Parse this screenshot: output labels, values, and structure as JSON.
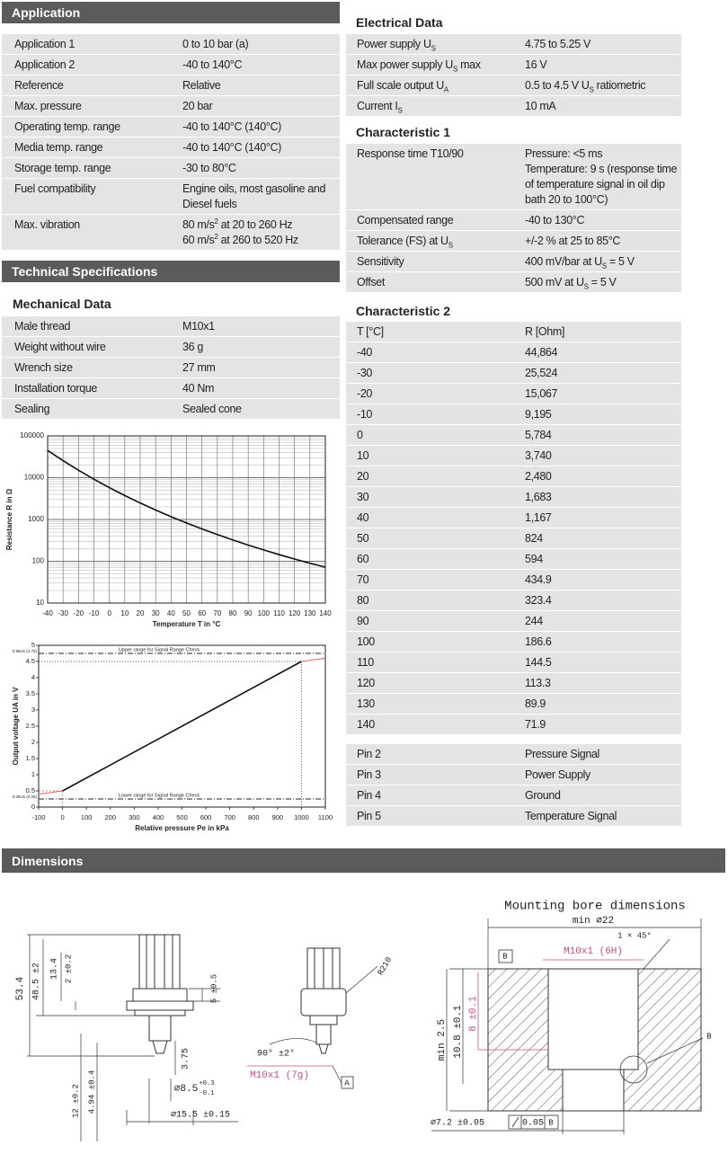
{
  "application": {
    "title": "Application",
    "rows": [
      [
        "Application 1",
        "0 to 10 bar (a)"
      ],
      [
        "Application 2",
        "-40 to 140°C"
      ],
      [
        "Reference",
        "Relative"
      ],
      [
        "Max. pressure",
        "20 bar"
      ],
      [
        "Operating temp. range",
        "-40 to 140°C (140°C)"
      ],
      [
        "Media temp. range",
        "-40 to 140°C (140°C)"
      ],
      [
        "Storage temp. range",
        "-30 to 80°C"
      ],
      [
        "Fuel compatibility",
        "Engine oils, most gasoline and Diesel fuels"
      ],
      [
        "Max. vibration",
        [
          [
            "80 m/s",
            {
              "sup": "2"
            },
            " at 20 to 260 Hz"
          ],
          [
            "60 m/s",
            {
              "sup": "2"
            },
            " at 260 to 520 Hz"
          ]
        ]
      ]
    ]
  },
  "technical": {
    "title": "Technical Specifications"
  },
  "mechanical": {
    "title": "Mechanical Data",
    "rows": [
      [
        "Male thread",
        "M10x1"
      ],
      [
        "Weight without wire",
        "36 g"
      ],
      [
        "Wrench size",
        "27 mm"
      ],
      [
        "Installation torque",
        "40 Nm"
      ],
      [
        "Sealing",
        "Sealed cone"
      ]
    ]
  },
  "electrical": {
    "title": "Electrical Data",
    "rows": [
      [
        [
          "Power supply U",
          {
            "sub": "S"
          }
        ],
        "4.75 to 5.25 V"
      ],
      [
        [
          "Max power supply U",
          {
            "sub": "S"
          },
          " max"
        ],
        "16 V"
      ],
      [
        [
          "Full scale output U",
          {
            "sub": "A"
          }
        ],
        [
          "0.5 to 4.5 V U",
          {
            "sub": "S"
          },
          " ratiometric"
        ]
      ],
      [
        [
          "Current I",
          {
            "sub": "S"
          }
        ],
        "10 mA"
      ]
    ]
  },
  "characteristic1": {
    "title": "Characteristic 1",
    "rows": [
      [
        "Response time T10/90",
        [
          [
            "Pressure: <5 ms"
          ],
          [
            "Temperature: 9 s (response time of temperature signal in oil dip bath 20 to 100°C)"
          ]
        ]
      ],
      [
        "Compensated range",
        "-40 to 130°C"
      ],
      [
        [
          "Tolerance (FS) at U",
          {
            "sub": "S"
          }
        ],
        "+/-2 % at 25 to 85°C"
      ],
      [
        "Sensitivity",
        [
          "400 mV/bar at U",
          {
            "sub": "S"
          },
          " = 5 V"
        ]
      ],
      [
        "Offset",
        [
          "500 mV at U",
          {
            "sub": "S"
          },
          " = 5 V"
        ]
      ]
    ]
  },
  "characteristic2": {
    "title": "Characteristic 2",
    "rows": [
      [
        "T [°C]",
        "R [Ohm]"
      ],
      [
        "-40",
        "44,864"
      ],
      [
        "-30",
        "25,524"
      ],
      [
        "-20",
        "15,067"
      ],
      [
        "-10",
        "9,195"
      ],
      [
        "0",
        "5,784"
      ],
      [
        "10",
        "3,740"
      ],
      [
        "20",
        "2,480"
      ],
      [
        "30",
        "1,683"
      ],
      [
        "40",
        "1,167"
      ],
      [
        "50",
        "824"
      ],
      [
        "60",
        "594"
      ],
      [
        "70",
        "434.9"
      ],
      [
        "80",
        "323.4"
      ],
      [
        "90",
        "244"
      ],
      [
        "100",
        "186.6"
      ],
      [
        "110",
        "144.5"
      ],
      [
        "120",
        "113.3"
      ],
      [
        "130",
        "89.9"
      ],
      [
        "140",
        "71.9"
      ]
    ]
  },
  "pins": {
    "rows": [
      [
        "Pin 2",
        "Pressure Signal"
      ],
      [
        "Pin 3",
        "Power Supply"
      ],
      [
        "Pin 4",
        "Ground"
      ],
      [
        "Pin 5",
        "Temperature Signal"
      ]
    ]
  },
  "dimensions": {
    "title": "Dimensions",
    "labels": [
      "53.4",
      "48.5 ±2",
      "13.4",
      "2 ±0.2",
      "5 ±0.5",
      "3.75",
      "⌀8.5",
      "+0.3",
      "-0.1",
      "⌀15.5 ±0.15",
      "12 ±0.2",
      "4.94 ±0.4",
      "90° ±2°",
      "R210",
      "M10x1 (7g)",
      "A",
      "Mounting bore dimensions",
      "min ⌀22",
      "1 × 45°",
      "M10x1 (6H)",
      "B",
      "min 2.5",
      "10.8 ±0.1",
      "8 ±0.1",
      "B",
      "⌀7.2 ±0.05",
      "0.05",
      "B"
    ]
  },
  "chart_data": [
    {
      "type": "line",
      "xlabel": "Temperature T in °C",
      "ylabel": "Resistance R in Ω",
      "x": [
        -40,
        -30,
        -20,
        -10,
        0,
        10,
        20,
        30,
        40,
        50,
        60,
        70,
        80,
        90,
        100,
        110,
        120,
        130,
        140
      ],
      "series": [
        {
          "color": "#111111",
          "values": [
            44864,
            25524,
            15067,
            9195,
            5784,
            3740,
            2480,
            1683,
            1167,
            824,
            594,
            434.9,
            323.4,
            244,
            186.6,
            144.5,
            113.3,
            89.9,
            71.9
          ]
        }
      ],
      "xlim": [
        -40,
        140
      ],
      "xticks": [
        -40,
        -30,
        -20,
        -10,
        0,
        10,
        20,
        30,
        40,
        50,
        60,
        70,
        80,
        90,
        100,
        110,
        120,
        130,
        140
      ],
      "ylim": [
        10,
        100000
      ],
      "yticks": [
        10,
        100,
        1000,
        10000,
        100000
      ],
      "log_y": true,
      "grid": true
    },
    {
      "type": "line",
      "xlabel": "Relative pressure Pe in kPa",
      "ylabel": "Output voltage UA in V",
      "series": [
        {
          "color": "#111111",
          "x": [
            0,
            1000
          ],
          "values": [
            0.5,
            4.5
          ]
        },
        {
          "color": "#e06060",
          "x": [
            -100,
            0
          ],
          "values": [
            0.4,
            0.5
          ]
        },
        {
          "color": "#e06060",
          "x": [
            1000,
            1100
          ],
          "values": [
            4.5,
            4.6
          ]
        }
      ],
      "xlim": [
        -100,
        1100
      ],
      "xticks": [
        -100,
        0,
        100,
        200,
        300,
        400,
        500,
        600,
        700,
        800,
        900,
        1000,
        1100
      ],
      "ylim": [
        0,
        5
      ],
      "yticks": [
        0,
        0.5,
        1,
        1.5,
        2,
        2.5,
        3,
        3.5,
        4,
        4.5,
        5
      ],
      "reference_lines": [
        {
          "value": 4.75,
          "label": "Upper range for Signal Range Check",
          "axis_label": "0.95Us (4.75)"
        },
        {
          "value": 0.25,
          "label": "Lower range for Signal Range Check",
          "axis_label": "0.05Us (0.25)"
        }
      ],
      "log_y": false,
      "grid": false
    }
  ]
}
